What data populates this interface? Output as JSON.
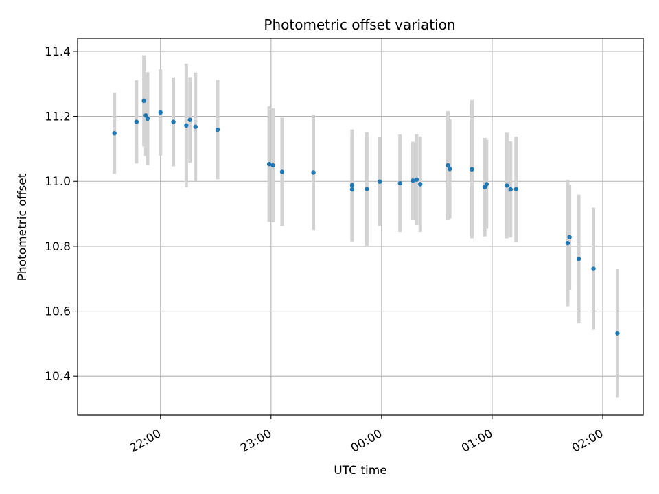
{
  "chart_data": {
    "type": "scatter",
    "title": "Photometric offset variation",
    "xlabel": "UTC time",
    "ylabel": "Photometric offset",
    "xlim": [
      "2024-01-01T21:15",
      "2024-01-02T02:22"
    ],
    "ylim": [
      10.28,
      11.44
    ],
    "x_ticks": [
      "22:00",
      "23:00",
      "00:00",
      "01:00",
      "02:00"
    ],
    "x_tick_times": [
      "2024-01-01T22:00",
      "2024-01-01T23:00",
      "2024-01-02T00:00",
      "2024-01-02T01:00",
      "2024-01-02T02:00"
    ],
    "y_ticks": [
      10.4,
      10.6,
      10.8,
      11.0,
      11.2,
      11.4
    ],
    "grid": true,
    "point_color": "#1f77b4",
    "errorbar_color": "#d3d3d3",
    "points": [
      {
        "time": "2024-01-01T21:35",
        "y": 11.148,
        "err": 0.125
      },
      {
        "time": "2024-01-01T21:47",
        "y": 11.183,
        "err": 0.128
      },
      {
        "time": "2024-01-01T21:51",
        "y": 11.248,
        "err": 0.14
      },
      {
        "time": "2024-01-01T21:52",
        "y": 11.203,
        "err": 0.125
      },
      {
        "time": "2024-01-01T21:53",
        "y": 11.193,
        "err": 0.143
      },
      {
        "time": "2024-01-01T22:00",
        "y": 11.212,
        "err": 0.133
      },
      {
        "time": "2024-01-01T22:07",
        "y": 11.183,
        "err": 0.137
      },
      {
        "time": "2024-01-01T22:14",
        "y": 11.172,
        "err": 0.19
      },
      {
        "time": "2024-01-01T22:16",
        "y": 11.189,
        "err": 0.132
      },
      {
        "time": "2024-01-01T22:19",
        "y": 11.168,
        "err": 0.167
      },
      {
        "time": "2024-01-01T22:31",
        "y": 11.159,
        "err": 0.153
      },
      {
        "time": "2024-01-01T22:59",
        "y": 11.053,
        "err": 0.178
      },
      {
        "time": "2024-01-01T23:01",
        "y": 11.049,
        "err": 0.175
      },
      {
        "time": "2024-01-01T23:06",
        "y": 11.029,
        "err": 0.167
      },
      {
        "time": "2024-01-01T23:23",
        "y": 11.027,
        "err": 0.177
      },
      {
        "time": "2024-01-01T23:44",
        "y": 10.988,
        "err": 0.172
      },
      {
        "time": "2024-01-01T23:44",
        "y": 10.975,
        "err": 0.16
      },
      {
        "time": "2024-01-01T23:52",
        "y": 10.976,
        "err": 0.175
      },
      {
        "time": "2024-01-01T23:59",
        "y": 10.999,
        "err": 0.137
      },
      {
        "time": "2024-01-02T00:10",
        "y": 10.994,
        "err": 0.15
      },
      {
        "time": "2024-01-02T00:17",
        "y": 11.002,
        "err": 0.12
      },
      {
        "time": "2024-01-02T00:19",
        "y": 11.005,
        "err": 0.14
      },
      {
        "time": "2024-01-02T00:21",
        "y": 10.991,
        "err": 0.147
      },
      {
        "time": "2024-01-02T00:36",
        "y": 11.049,
        "err": 0.167
      },
      {
        "time": "2024-01-02T00:37",
        "y": 11.038,
        "err": 0.153
      },
      {
        "time": "2024-01-02T00:49",
        "y": 11.037,
        "err": 0.213
      },
      {
        "time": "2024-01-02T00:49",
        "y": 11.037,
        "err": 0.213
      },
      {
        "time": "2024-01-02T00:56",
        "y": 10.982,
        "err": 0.152
      },
      {
        "time": "2024-01-02T00:57",
        "y": 10.991,
        "err": 0.137
      },
      {
        "time": "2024-01-02T01:08",
        "y": 10.987,
        "err": 0.163
      },
      {
        "time": "2024-01-02T01:10",
        "y": 10.975,
        "err": 0.148
      },
      {
        "time": "2024-01-02T01:13",
        "y": 10.976,
        "err": 0.162
      },
      {
        "time": "2024-01-02T01:41",
        "y": 10.81,
        "err": 0.195
      },
      {
        "time": "2024-01-02T01:42",
        "y": 10.828,
        "err": 0.162
      },
      {
        "time": "2024-01-02T01:47",
        "y": 10.761,
        "err": 0.198
      },
      {
        "time": "2024-01-02T01:55",
        "y": 10.731,
        "err": 0.188
      },
      {
        "time": "2024-01-02T02:08",
        "y": 10.532,
        "err": 0.198
      }
    ]
  }
}
